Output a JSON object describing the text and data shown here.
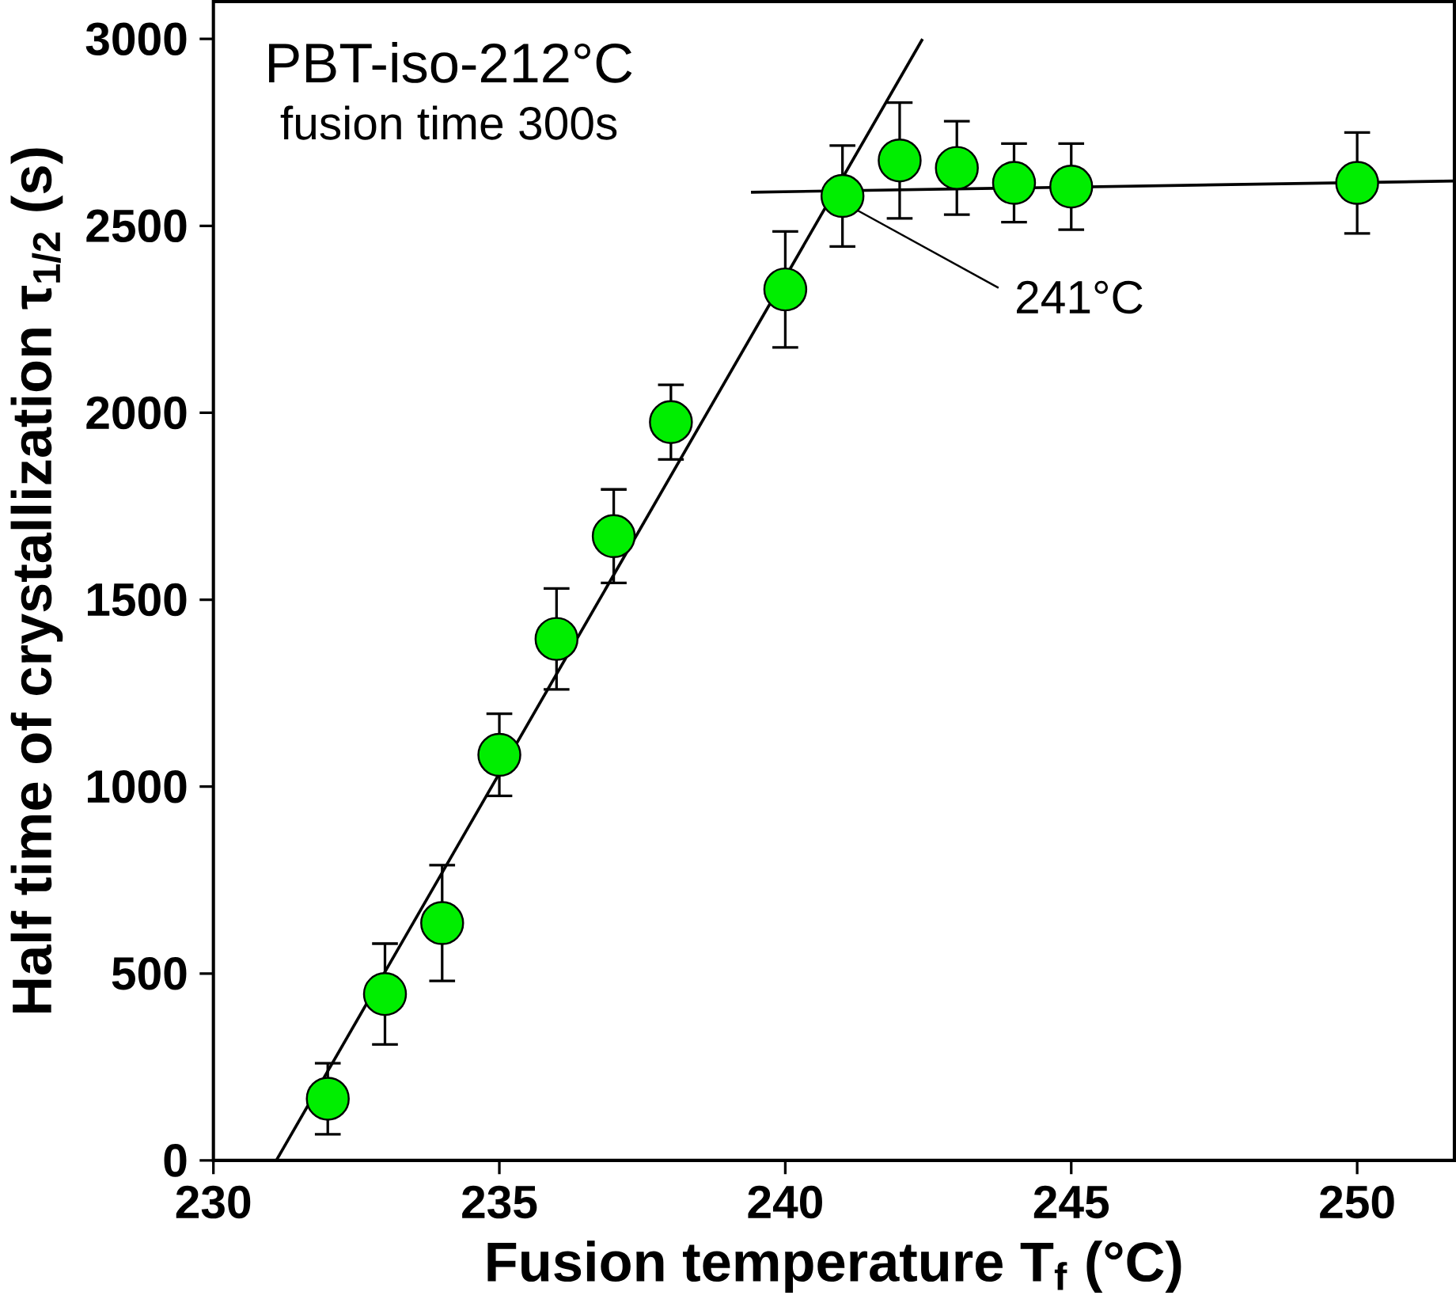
{
  "chart_data": {
    "type": "scatter",
    "xlabel": "Fusion temperature T$_{f}$ (°C)",
    "ylabel": "Half time of crystallization τ$_{1/2}$ (s)",
    "xlim": [
      230,
      251.7
    ],
    "ylim": [
      0,
      3100
    ],
    "xticks": [
      230,
      235,
      240,
      245,
      250
    ],
    "yticks": [
      0,
      500,
      1000,
      1500,
      2000,
      2500,
      3000
    ],
    "grid": false,
    "annotations": [
      "PBT-iso-212°C",
      "fusion time 300s",
      {
        "text": "241°C",
        "x": 241,
        "y": 2580
      }
    ],
    "series": [
      {
        "color": "#00ee00",
        "marker": "circle",
        "x": [
          232,
          233,
          234,
          235,
          236,
          237,
          238,
          240,
          241,
          242,
          243,
          244,
          245,
          250
        ],
        "values": [
          165,
          445,
          635,
          1085,
          1395,
          1670,
          1975,
          2330,
          2580,
          2675,
          2655,
          2615,
          2605,
          2615
        ],
        "errors": [
          95,
          135,
          155,
          110,
          135,
          125,
          100,
          155,
          135,
          155,
          125,
          105,
          115,
          135
        ]
      },
      {
        "type": "line",
        "color": "#000000",
        "marker": "none",
        "x": [
          231.1,
          242.4
        ],
        "values": [
          0,
          3000
        ]
      },
      {
        "type": "line",
        "color": "#000000",
        "marker": "none",
        "x": [
          239.4,
          251.7
        ],
        "values": [
          2590,
          2620
        ]
      }
    ]
  }
}
